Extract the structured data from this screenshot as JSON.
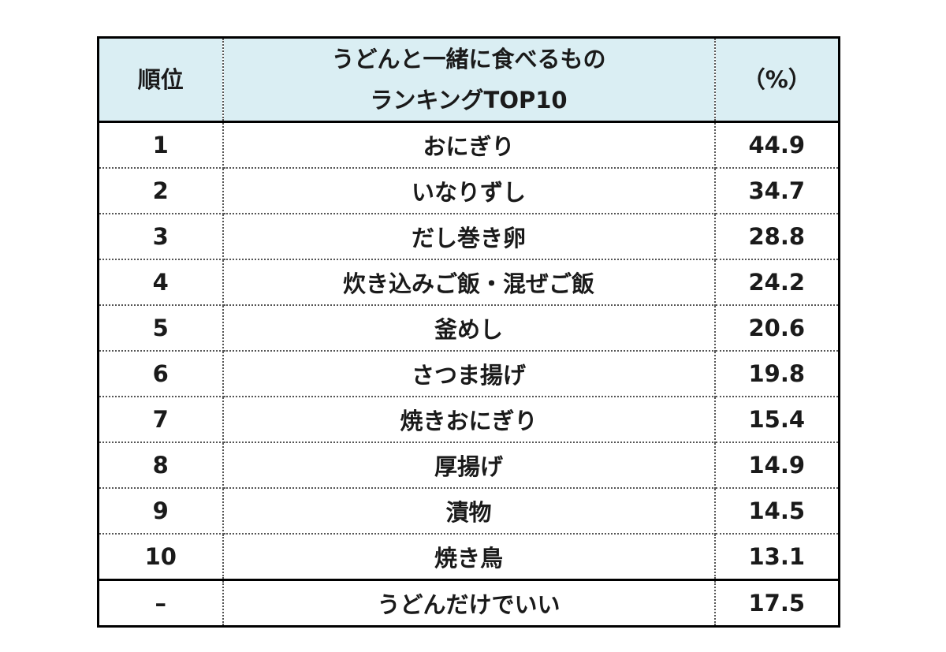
{
  "chart_data": {
    "type": "table",
    "columns": [
      "順位",
      "うどんと一緒に食べるもの",
      "ランキングTOP10",
      "（%）"
    ],
    "rows": [
      {
        "rank": "1",
        "item": "おにぎり",
        "value": "44.9"
      },
      {
        "rank": "2",
        "item": "いなりずし",
        "value": "34.7"
      },
      {
        "rank": "3",
        "item": "だし巻き卵",
        "value": "28.8"
      },
      {
        "rank": "4",
        "item": "炊き込みご飯・混ぜご飯",
        "value": "24.2"
      },
      {
        "rank": "5",
        "item": "釜めし",
        "value": "20.6"
      },
      {
        "rank": "6",
        "item": "さつま揚げ",
        "value": "19.8"
      },
      {
        "rank": "7",
        "item": "焼きおにぎり",
        "value": "15.4"
      },
      {
        "rank": "8",
        "item": "厚揚げ",
        "value": "14.9"
      },
      {
        "rank": "9",
        "item": "漬物",
        "value": "14.5"
      },
      {
        "rank": "10",
        "item": "焼き鳥",
        "value": "13.1"
      }
    ],
    "extra_row": {
      "rank": "–",
      "item": "うどんだけでいい",
      "value": "17.5"
    }
  },
  "colors": {
    "header_background": "#daeef3",
    "text": "#1a1a1a",
    "border": "#000000"
  }
}
